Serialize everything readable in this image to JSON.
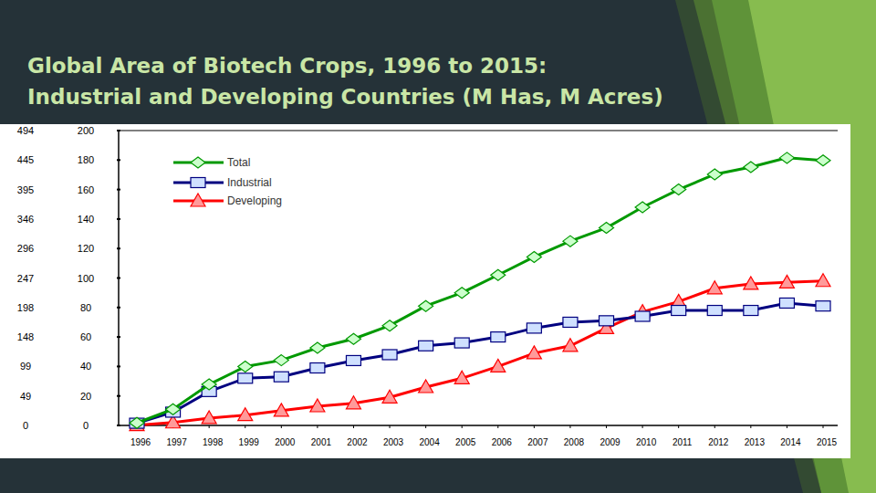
{
  "chart_data": {
    "type": "line",
    "title": "Global Area of Biotech Crops, 1996 to 2015:\nIndustrial and Developing Countries (M Has, M Acres)",
    "categories": [
      "1996",
      "1997",
      "1998",
      "1999",
      "2000",
      "2001",
      "2002",
      "2003",
      "2004",
      "2005",
      "2006",
      "2007",
      "2008",
      "2009",
      "2010",
      "2011",
      "2012",
      "2013",
      "2014",
      "2015"
    ],
    "series": [
      {
        "name": "Total",
        "color": "#009900",
        "marker": "diamond",
        "values": [
          1.7,
          11,
          27.8,
          39.9,
          44.2,
          52.6,
          58.7,
          67.7,
          81,
          90,
          102,
          114.3,
          125,
          134,
          148,
          160,
          170.3,
          175.2,
          181.5,
          179.7
        ]
      },
      {
        "name": "Industrial",
        "color": "#000080",
        "marker": "square",
        "values": [
          1.5,
          9,
          23,
          32,
          33,
          39,
          44,
          48,
          54,
          56,
          60,
          66,
          70,
          71,
          74,
          78,
          78,
          78,
          83,
          81
        ]
      },
      {
        "name": "Developing",
        "color": "#ff0000",
        "marker": "triangle",
        "values": [
          0.2,
          2,
          5,
          7,
          10,
          13,
          15,
          19,
          26,
          32,
          40,
          49,
          54,
          66,
          77,
          84,
          93,
          96,
          97,
          98
        ]
      }
    ],
    "ylim": [
      0,
      200
    ],
    "yticks": [
      0,
      20,
      40,
      60,
      80,
      100,
      120,
      140,
      160,
      180,
      200
    ],
    "y2lim": [
      0,
      494
    ],
    "y2ticks": [
      0,
      49,
      99,
      148,
      198,
      247,
      296,
      346,
      395,
      445,
      494
    ],
    "grid": false,
    "legend": "top-left"
  }
}
